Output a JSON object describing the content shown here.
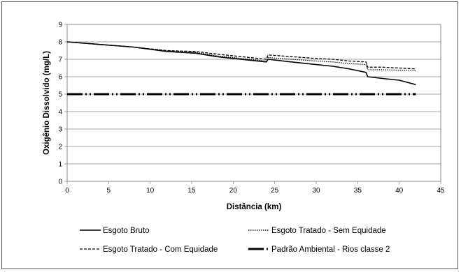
{
  "chart_data": {
    "type": "line",
    "xlabel": "Distância (km)",
    "ylabel": "Oxigênio Dissolvido (mg/L)",
    "xlim": [
      0,
      45
    ],
    "ylim": [
      0,
      9
    ],
    "xticks": [
      0,
      5,
      10,
      15,
      20,
      25,
      30,
      35,
      40,
      45
    ],
    "yticks": [
      0,
      1,
      2,
      3,
      4,
      5,
      6,
      7,
      8,
      9
    ],
    "grid": "horizontal",
    "legend_position": "bottom",
    "series": [
      {
        "name": "Esgoto Bruto",
        "style": "solid",
        "x": [
          0,
          4,
          8,
          12,
          15.5,
          18,
          20,
          22,
          24,
          24.2,
          27,
          29,
          32,
          34,
          36,
          36.2,
          38,
          40,
          42
        ],
        "y": [
          8.0,
          7.85,
          7.7,
          7.45,
          7.35,
          7.15,
          7.05,
          6.95,
          6.85,
          7.0,
          6.85,
          6.75,
          6.6,
          6.45,
          6.25,
          6.0,
          5.9,
          5.8,
          5.55
        ]
      },
      {
        "name": "Esgoto Tratado - Sem Equidade",
        "style": "dotted",
        "x": [
          0,
          4,
          8,
          12,
          15.5,
          18,
          20,
          22,
          24,
          24.2,
          27,
          30,
          32,
          34,
          36,
          36.2,
          38,
          42
        ],
        "y": [
          8.0,
          7.85,
          7.7,
          7.5,
          7.4,
          7.2,
          7.1,
          7.0,
          6.9,
          7.1,
          7.0,
          6.9,
          6.85,
          6.75,
          6.7,
          6.4,
          6.4,
          6.35
        ]
      },
      {
        "name": "Esgoto Tratado - Com Equidade",
        "style": "dashed",
        "x": [
          0,
          4,
          8,
          12,
          15.5,
          18,
          20,
          22,
          24,
          24.2,
          27,
          30,
          32,
          34,
          36,
          36.2,
          38,
          42
        ],
        "y": [
          8.0,
          7.85,
          7.7,
          7.5,
          7.45,
          7.3,
          7.2,
          7.1,
          7.0,
          7.25,
          7.15,
          7.05,
          7.0,
          6.9,
          6.85,
          6.55,
          6.55,
          6.45
        ]
      },
      {
        "name": "Padrão Ambiental - Rios classe 2",
        "style": "dash-dot",
        "x": [
          0,
          42
        ],
        "y": [
          5,
          5
        ]
      }
    ]
  }
}
